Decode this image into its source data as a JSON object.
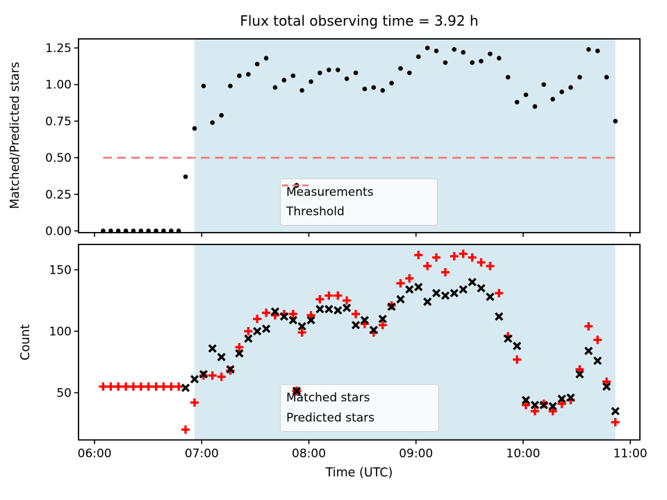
{
  "title": "Flux total observing time = 3.92 h",
  "colors": {
    "shading": "#d7eaf1",
    "threshold": "#ef7b7d",
    "matched": "#ff0000",
    "predicted": "#000000",
    "measurements": "#000000",
    "spine": "#000000",
    "legend_border": "#cfcfcf"
  },
  "chart_data": [
    {
      "type": "scatter",
      "title": "Flux total observing time = 3.92 h",
      "ylabel": "Matched/Predicted stars",
      "ylim": [
        -0.012,
        1.312
      ],
      "yticks": [
        0,
        0.25,
        0.5,
        0.75,
        1.0,
        1.25
      ],
      "ytick_labels": [
        "0.00",
        "0.25",
        "0.50",
        "0.75",
        "1.00",
        "1.25"
      ],
      "xlim": [
        5.85,
        11.09
      ],
      "grid": false,
      "legend_position": "lower center",
      "shaded_span": [
        6.933,
        10.861
      ],
      "threshold": {
        "label": "Threshold",
        "value": 0.5,
        "x_start": 6.08,
        "x_end": 10.861,
        "color": "#ef7b7d"
      },
      "series": [
        {
          "name": "Measurements",
          "marker": "dot",
          "color": "#000000",
          "x": [
            6.08,
            6.151,
            6.221,
            6.292,
            6.362,
            6.433,
            6.503,
            6.574,
            6.644,
            6.715,
            6.785,
            6.849,
            6.933,
            7.017,
            7.1,
            7.184,
            7.267,
            7.351,
            7.435,
            7.518,
            7.602,
            7.685,
            7.769,
            7.853,
            7.936,
            8.02,
            8.103,
            8.187,
            8.271,
            8.354,
            8.438,
            8.521,
            8.605,
            8.689,
            8.772,
            8.856,
            8.939,
            9.023,
            9.107,
            9.19,
            9.274,
            9.357,
            9.441,
            9.525,
            9.608,
            9.692,
            9.775,
            9.859,
            9.943,
            10.026,
            10.11,
            10.193,
            10.277,
            10.361,
            10.444,
            10.528,
            10.611,
            10.695,
            10.779,
            10.861
          ],
          "y": [
            0,
            0,
            0,
            0,
            0,
            0,
            0,
            0,
            0,
            0,
            0,
            0.37,
            0.7,
            0.99,
            0.74,
            0.79,
            0.99,
            1.06,
            1.07,
            1.14,
            1.18,
            0.98,
            1.03,
            1.06,
            0.96,
            1.02,
            1.08,
            1.1,
            1.1,
            1.04,
            1.08,
            0.97,
            0.98,
            0.96,
            1.01,
            1.11,
            1.08,
            1.19,
            1.25,
            1.23,
            1.15,
            1.24,
            1.22,
            1.15,
            1.16,
            1.21,
            1.18,
            1.05,
            0.88,
            0.93,
            0.85,
            1.0,
            0.9,
            0.95,
            0.98,
            1.05,
            1.24,
            1.23,
            1.05,
            0.75
          ]
        }
      ]
    },
    {
      "type": "scatter",
      "ylabel": "Count",
      "xlabel": "Time (UTC)",
      "ylim": [
        11.6,
        170.6
      ],
      "yticks": [
        50,
        100,
        150
      ],
      "ytick_labels": [
        "50",
        "100",
        "150"
      ],
      "xticks": [
        6,
        7,
        8,
        9,
        10,
        11
      ],
      "xtick_labels": [
        "06:00",
        "07:00",
        "08:00",
        "09:00",
        "10:00",
        "11:00"
      ],
      "xlim": [
        5.85,
        11.09
      ],
      "grid": false,
      "legend_position": "lower center",
      "shaded_span": [
        6.933,
        10.861
      ],
      "series": [
        {
          "name": "Matched stars",
          "marker": "plus",
          "color": "#ff0000",
          "x": [
            6.08,
            6.151,
            6.221,
            6.292,
            6.362,
            6.433,
            6.503,
            6.574,
            6.644,
            6.715,
            6.785,
            6.849,
            6.933,
            7.017,
            7.1,
            7.184,
            7.267,
            7.351,
            7.435,
            7.518,
            7.602,
            7.685,
            7.769,
            7.853,
            7.936,
            8.02,
            8.103,
            8.187,
            8.271,
            8.354,
            8.438,
            8.521,
            8.605,
            8.689,
            8.772,
            8.856,
            8.939,
            9.023,
            9.107,
            9.19,
            9.274,
            9.357,
            9.441,
            9.525,
            9.608,
            9.692,
            9.775,
            9.859,
            9.943,
            10.026,
            10.11,
            10.193,
            10.277,
            10.361,
            10.444,
            10.528,
            10.611,
            10.695,
            10.779,
            10.861
          ],
          "y": [
            55,
            55,
            55,
            55,
            55,
            55,
            55,
            55,
            55,
            55,
            55,
            20,
            42,
            64,
            64,
            63,
            68,
            87,
            100,
            110,
            115,
            113,
            114,
            114,
            99,
            113,
            126,
            129,
            129,
            125,
            114,
            106,
            99,
            105,
            121,
            139,
            143,
            162,
            153,
            160,
            148,
            161,
            163,
            160,
            156,
            153,
            131,
            96,
            77,
            40,
            35,
            41,
            35,
            41,
            44,
            69,
            104,
            93,
            59,
            26
          ]
        },
        {
          "name": "Predicted stars",
          "marker": "x",
          "color": "#000000",
          "x": [
            6.849,
            6.933,
            7.017,
            7.1,
            7.184,
            7.267,
            7.351,
            7.435,
            7.518,
            7.602,
            7.685,
            7.769,
            7.853,
            7.936,
            8.02,
            8.103,
            8.187,
            8.271,
            8.354,
            8.438,
            8.521,
            8.605,
            8.689,
            8.772,
            8.856,
            8.939,
            9.023,
            9.107,
            9.19,
            9.274,
            9.357,
            9.441,
            9.525,
            9.608,
            9.692,
            9.775,
            9.859,
            9.943,
            10.026,
            10.11,
            10.193,
            10.277,
            10.361,
            10.444,
            10.528,
            10.611,
            10.695,
            10.779,
            10.861
          ],
          "y": [
            54,
            61,
            65,
            86,
            79,
            69,
            82,
            94,
            100,
            102,
            116,
            112,
            109,
            104,
            109,
            118,
            118,
            117,
            119,
            105,
            109,
            101,
            110,
            120,
            126,
            134,
            136,
            124,
            131,
            129,
            131,
            134,
            140,
            135,
            128,
            112,
            94,
            88,
            44,
            40,
            40,
            39,
            45,
            46,
            65,
            84,
            76,
            55,
            35
          ]
        }
      ]
    }
  ]
}
